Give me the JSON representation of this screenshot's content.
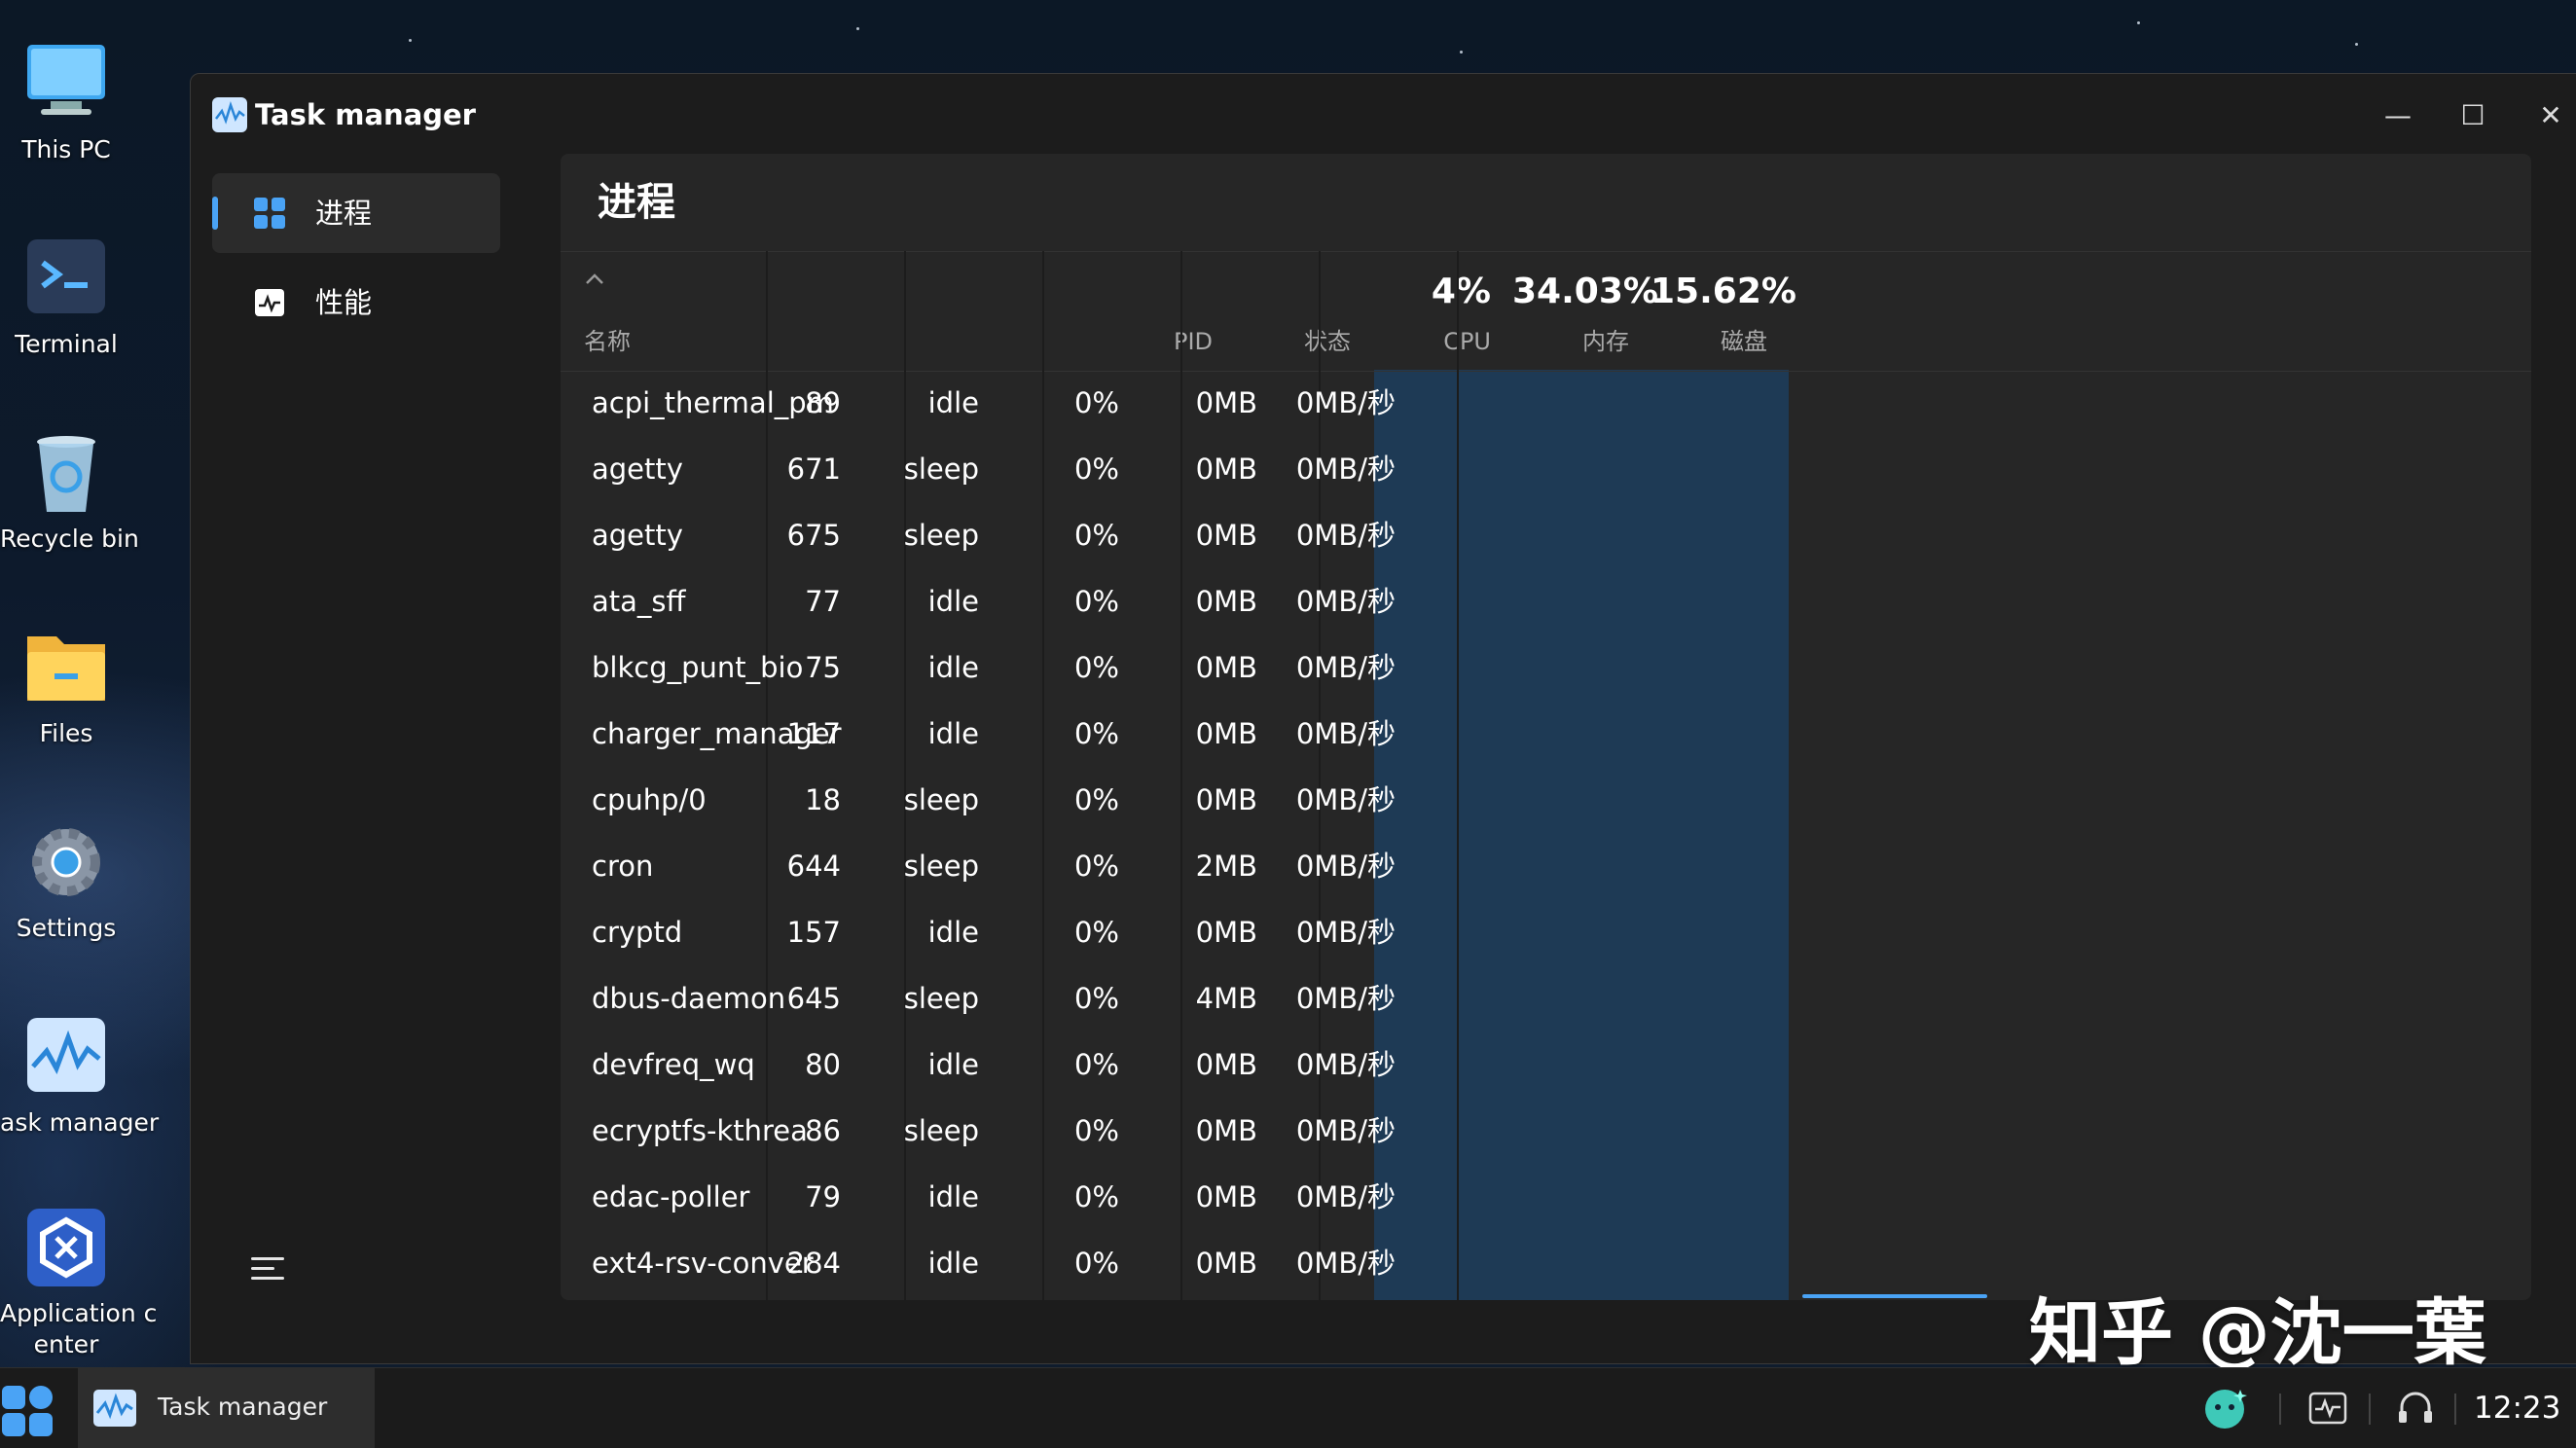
{
  "desktop": {
    "icons": [
      {
        "label": "This PC",
        "icon": "monitor-icon"
      },
      {
        "label": "Terminal",
        "icon": "terminal-icon"
      },
      {
        "label": "Recycle bin",
        "icon": "recycle-bin-icon"
      },
      {
        "label": "Files",
        "icon": "folder-icon"
      },
      {
        "label": "Settings",
        "icon": "gear-icon"
      },
      {
        "label": "ask manager",
        "icon": "task-manager-icon"
      },
      {
        "label": "Application c\nenter",
        "icon": "app-center-icon"
      }
    ]
  },
  "window": {
    "title": "Task manager",
    "controls": {
      "minimize": "—",
      "maximize": "☐",
      "close": "✕"
    }
  },
  "sidebar": {
    "items": [
      {
        "label": "进程",
        "icon": "grid-icon",
        "active": true
      },
      {
        "label": "性能",
        "icon": "activity-icon",
        "active": false
      }
    ],
    "menu_icon": "menu-icon"
  },
  "content": {
    "title": "进程",
    "header": {
      "name": "名称",
      "pid": "PID",
      "status": "状态",
      "cpu_value": "4%",
      "cpu_label": "CPU",
      "mem_value": "34.03%",
      "mem_label": "内存",
      "disk_value": "15.62%",
      "disk_label": "磁盘"
    },
    "rows": [
      {
        "name": "acpi_thermal_pm",
        "pid": "89",
        "status": "idle",
        "cpu": "0%",
        "mem": "0MB",
        "disk": "0MB/秒"
      },
      {
        "name": "agetty",
        "pid": "671",
        "status": "sleep",
        "cpu": "0%",
        "mem": "0MB",
        "disk": "0MB/秒"
      },
      {
        "name": "agetty",
        "pid": "675",
        "status": "sleep",
        "cpu": "0%",
        "mem": "0MB",
        "disk": "0MB/秒"
      },
      {
        "name": "ata_sff",
        "pid": "77",
        "status": "idle",
        "cpu": "0%",
        "mem": "0MB",
        "disk": "0MB/秒"
      },
      {
        "name": "blkcg_punt_bio",
        "pid": "75",
        "status": "idle",
        "cpu": "0%",
        "mem": "0MB",
        "disk": "0MB/秒"
      },
      {
        "name": "charger_manager",
        "pid": "117",
        "status": "idle",
        "cpu": "0%",
        "mem": "0MB",
        "disk": "0MB/秒"
      },
      {
        "name": "cpuhp/0",
        "pid": "18",
        "status": "sleep",
        "cpu": "0%",
        "mem": "0MB",
        "disk": "0MB/秒"
      },
      {
        "name": "cron",
        "pid": "644",
        "status": "sleep",
        "cpu": "0%",
        "mem": "2MB",
        "disk": "0MB/秒"
      },
      {
        "name": "cryptd",
        "pid": "157",
        "status": "idle",
        "cpu": "0%",
        "mem": "0MB",
        "disk": "0MB/秒"
      },
      {
        "name": "dbus-daemon",
        "pid": "645",
        "status": "sleep",
        "cpu": "0%",
        "mem": "4MB",
        "disk": "0MB/秒"
      },
      {
        "name": "devfreq_wq",
        "pid": "80",
        "status": "idle",
        "cpu": "0%",
        "mem": "0MB",
        "disk": "0MB/秒"
      },
      {
        "name": "ecryptfs-kthrea",
        "pid": "86",
        "status": "sleep",
        "cpu": "0%",
        "mem": "0MB",
        "disk": "0MB/秒"
      },
      {
        "name": "edac-poller",
        "pid": "79",
        "status": "idle",
        "cpu": "0%",
        "mem": "0MB",
        "disk": "0MB/秒"
      },
      {
        "name": "ext4-rsv-conver",
        "pid": "284",
        "status": "idle",
        "cpu": "0%",
        "mem": "0MB",
        "disk": "0MB/秒"
      }
    ]
  },
  "watermark": "知乎 @沈一葉",
  "taskbar": {
    "app_label": "Task manager",
    "clock": "12:23"
  },
  "colors": {
    "accent": "#4aa3f5",
    "highlight_column": "#1e3a55"
  }
}
